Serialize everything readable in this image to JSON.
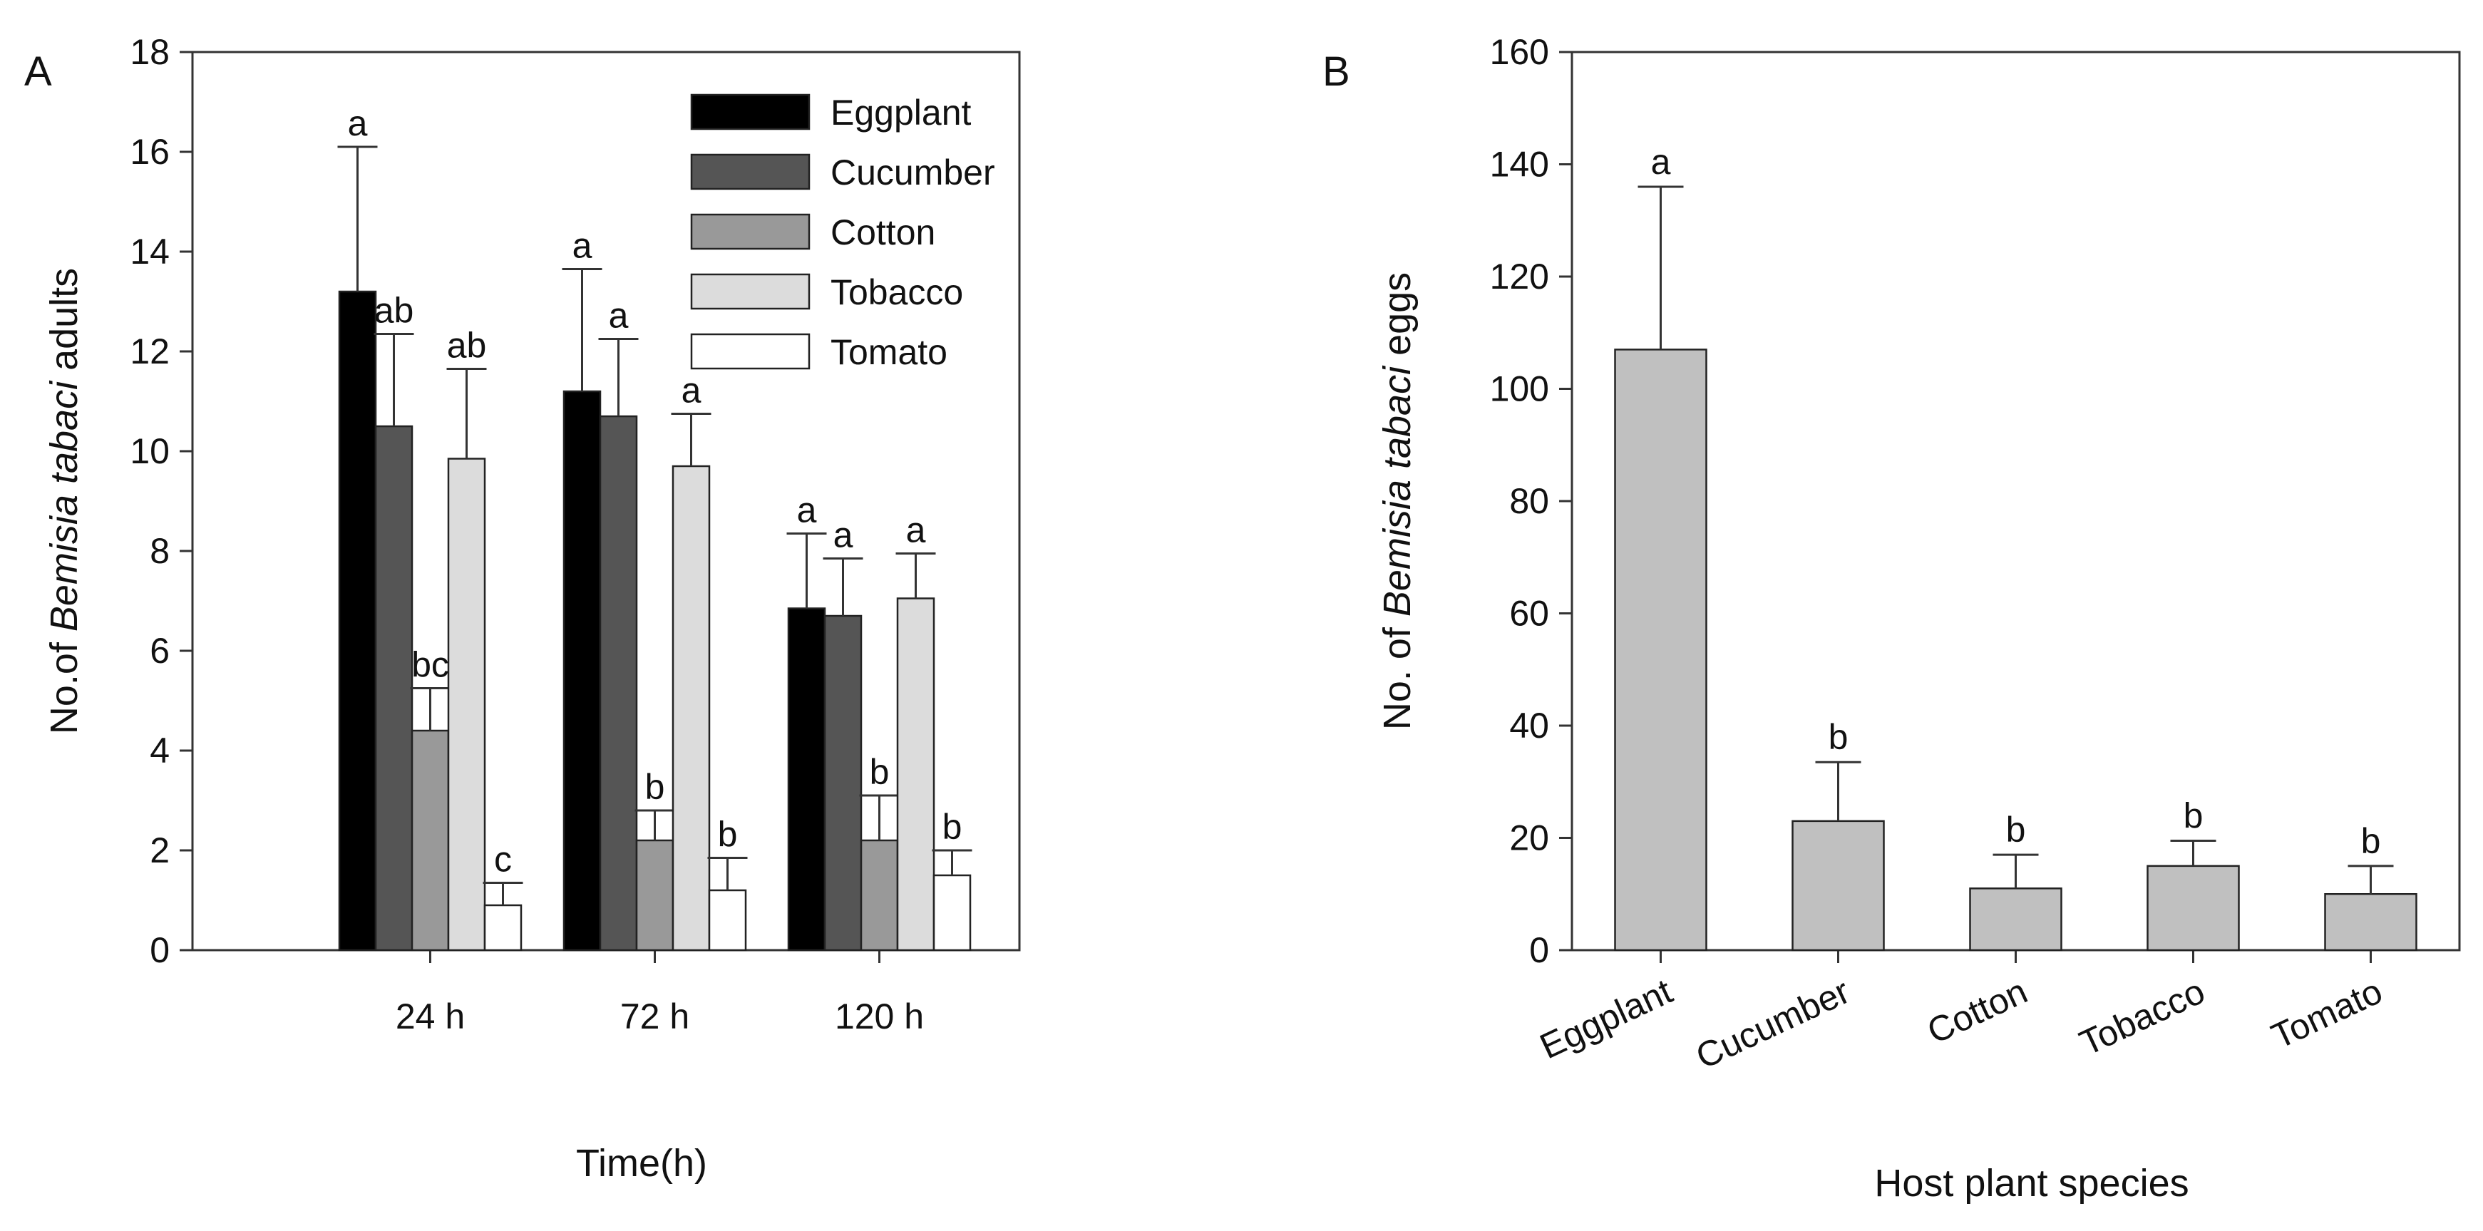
{
  "chart_data": [
    {
      "panel": "A",
      "type": "bar",
      "title": "",
      "xlabel": "Time(h)",
      "ylabel_parts": [
        {
          "text": "No.of ",
          "italic": false
        },
        {
          "text": "Bemisia tabaci",
          "italic": true
        },
        {
          "text": " adults",
          "italic": false
        }
      ],
      "ylim": [
        0,
        18
      ],
      "yticks": [
        0,
        2,
        4,
        6,
        8,
        10,
        12,
        14,
        16,
        18
      ],
      "categories": [
        "24 h",
        "72 h",
        "120 h"
      ],
      "legend_position": "top-right",
      "series": [
        {
          "name": "Eggplant",
          "color": "#000000",
          "values": [
            13.2,
            11.2,
            6.85
          ],
          "errors": [
            2.9,
            2.45,
            1.5
          ],
          "labels": [
            "a",
            "a",
            "a"
          ]
        },
        {
          "name": "Cucumber",
          "color": "#555555",
          "values": [
            10.5,
            10.7,
            6.7
          ],
          "errors": [
            1.85,
            1.55,
            1.15
          ],
          "labels": [
            "ab",
            "a",
            "a"
          ]
        },
        {
          "name": "Cotton",
          "color": "#999999",
          "values": [
            4.4,
            2.2,
            2.2
          ],
          "errors": [
            0.85,
            0.6,
            0.9
          ],
          "labels": [
            "bc",
            "b",
            "b"
          ]
        },
        {
          "name": "Tobacco",
          "color": "#dcdcdc",
          "values": [
            9.85,
            9.7,
            7.05
          ],
          "errors": [
            1.8,
            1.05,
            0.9
          ],
          "labels": [
            "ab",
            "a",
            "a"
          ]
        },
        {
          "name": "Tomato",
          "color": "#ffffff",
          "values": [
            0.9,
            1.2,
            1.5
          ],
          "errors": [
            0.45,
            0.65,
            0.5
          ],
          "labels": [
            "c",
            "b",
            "b"
          ]
        }
      ]
    },
    {
      "panel": "B",
      "type": "bar",
      "title": "",
      "xlabel": "Host plant species",
      "ylabel_parts": [
        {
          "text": "No. of ",
          "italic": false
        },
        {
          "text": "Bemisia tabaci",
          "italic": true
        },
        {
          "text": " eggs",
          "italic": false
        }
      ],
      "ylim": [
        0,
        160
      ],
      "yticks": [
        0,
        20,
        40,
        60,
        80,
        100,
        120,
        140,
        160
      ],
      "categories": [
        "Eggplant",
        "Cucumber",
        "Cotton",
        "Tobacco",
        "Tomato"
      ],
      "bar_color": "#c0c0c0",
      "values": [
        107,
        23,
        11,
        15,
        10
      ],
      "errors": [
        29,
        10.5,
        6,
        4.5,
        5
      ],
      "labels": [
        "a",
        "b",
        "b",
        "b",
        "b"
      ]
    }
  ]
}
